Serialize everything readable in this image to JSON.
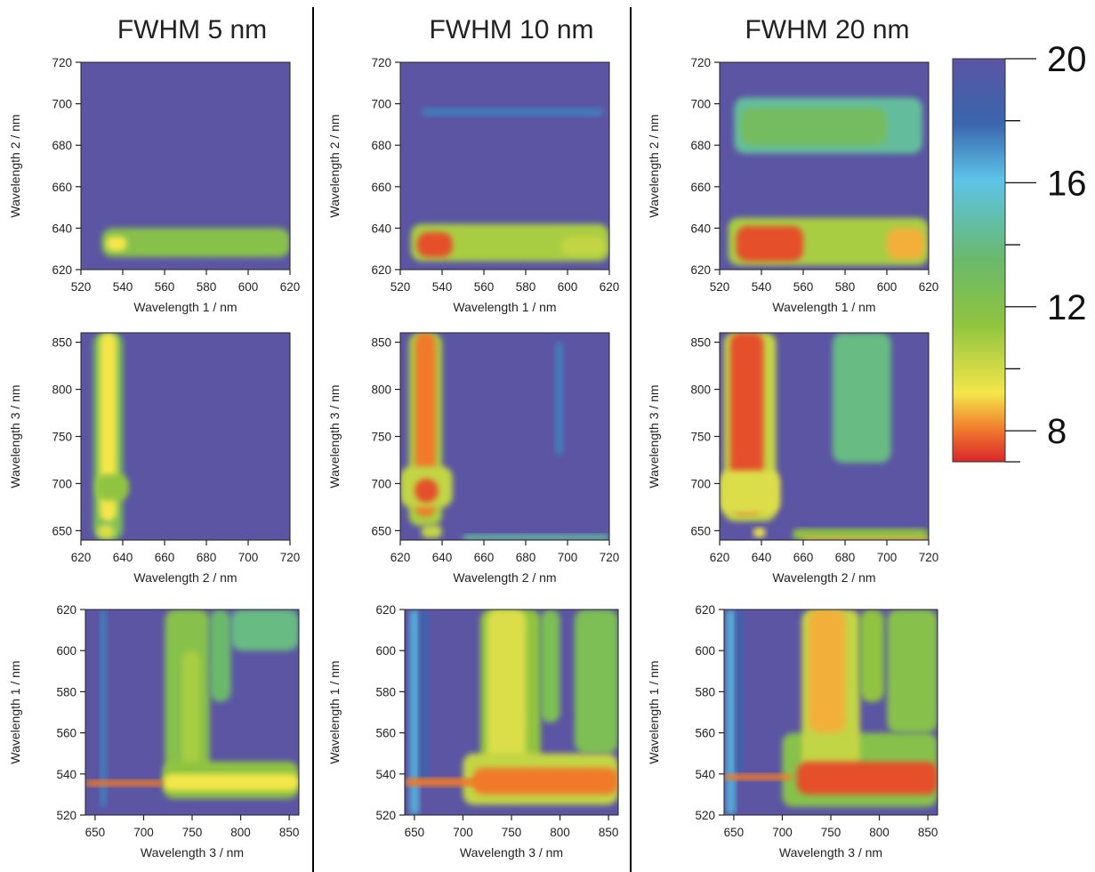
{
  "colors": {
    "background": "#5b55a3",
    "scale": [
      "#d9262b",
      "#f07a2c",
      "#f4e64a",
      "#90c440",
      "#6ab96a",
      "#5cc3e8",
      "#3a65ad",
      "#5b55a3"
    ]
  },
  "colorbar": {
    "range": [
      7,
      20
    ],
    "major_ticks": [
      8,
      12,
      16,
      20
    ],
    "minor_ticks": [
      7,
      10,
      14,
      18
    ],
    "labels": [
      "8",
      "12",
      "16",
      "20"
    ]
  },
  "chart_data": [
    {
      "type": "heatmap",
      "title": "FWHM 5 nm",
      "xlabel": "Wavelength 1 / nm",
      "ylabel": "Wavelength 2 / nm",
      "xlim": [
        520,
        620
      ],
      "ylim": [
        620,
        720
      ],
      "xticks": [
        520,
        540,
        560,
        580,
        600,
        620
      ],
      "yticks": [
        620,
        640,
        660,
        680,
        700,
        720
      ],
      "xtick_labels": [
        "520",
        "540",
        "560",
        "580",
        "600",
        "620"
      ],
      "ytick_labels": [
        "620",
        "640",
        "660",
        "680",
        "700",
        "720"
      ],
      "features": [
        {
          "x": [
            530,
            620
          ],
          "y": [
            626,
            640
          ],
          "level": 11.5
        },
        {
          "x": [
            532,
            542
          ],
          "y": [
            629,
            636
          ],
          "level": 9
        }
      ]
    },
    {
      "type": "heatmap",
      "title": "FWHM 10 nm",
      "xlabel": "Wavelength 1 / nm",
      "ylabel": "Wavelength 2 / nm",
      "xlim": [
        520,
        620
      ],
      "ylim": [
        620,
        720
      ],
      "xticks": [
        520,
        540,
        560,
        580,
        600,
        620
      ],
      "yticks": [
        620,
        640,
        660,
        680,
        700,
        720
      ],
      "xtick_labels": [
        "520",
        "540",
        "560",
        "580",
        "600",
        "620"
      ],
      "ytick_labels": [
        "620",
        "640",
        "660",
        "680",
        "700",
        "720"
      ],
      "features": [
        {
          "x": [
            525,
            620
          ],
          "y": [
            624,
            642
          ],
          "level": 10.5
        },
        {
          "x": [
            528,
            545
          ],
          "y": [
            626,
            638
          ],
          "level": 7.5
        },
        {
          "x": [
            597,
            618
          ],
          "y": [
            627,
            636
          ],
          "level": 10
        },
        {
          "x": [
            530,
            617
          ],
          "y": [
            694,
            698
          ],
          "level": 17
        }
      ]
    },
    {
      "type": "heatmap",
      "title": "FWHM 20 nm",
      "xlabel": "Wavelength 1 / nm",
      "ylabel": "Wavelength 2 / nm",
      "xlim": [
        520,
        620
      ],
      "ylim": [
        620,
        720
      ],
      "xticks": [
        520,
        540,
        560,
        580,
        600,
        620
      ],
      "yticks": [
        620,
        640,
        660,
        680,
        700,
        720
      ],
      "xtick_labels": [
        "520",
        "540",
        "560",
        "580",
        "600",
        "620"
      ],
      "ytick_labels": [
        "620",
        "640",
        "660",
        "680",
        "700",
        "720"
      ],
      "features": [
        {
          "x": [
            524,
            620
          ],
          "y": [
            622,
            645
          ],
          "level": 10.5
        },
        {
          "x": [
            528,
            560
          ],
          "y": [
            624,
            641
          ],
          "level": 7.5
        },
        {
          "x": [
            600,
            618
          ],
          "y": [
            625,
            640
          ],
          "level": 8.5
        },
        {
          "x": [
            527,
            617
          ],
          "y": [
            676,
            703
          ],
          "level": 14
        },
        {
          "x": [
            530,
            600
          ],
          "y": [
            680,
            698
          ],
          "level": 12.5
        }
      ]
    },
    {
      "type": "heatmap",
      "xlabel": "Wavelength 2 / nm",
      "ylabel": "Wavelength 3 / nm",
      "xlim": [
        620,
        720
      ],
      "ylim": [
        640,
        860
      ],
      "xticks": [
        620,
        640,
        660,
        680,
        700,
        720
      ],
      "yticks": [
        650,
        700,
        750,
        800,
        850
      ],
      "xtick_labels": [
        "620",
        "640",
        "660",
        "680",
        "700",
        "720"
      ],
      "ytick_labels": [
        "650",
        "700",
        "750",
        "800",
        "850"
      ],
      "features": [
        {
          "x": [
            626,
            640
          ],
          "y": [
            640,
            860
          ],
          "level": 12
        },
        {
          "x": [
            629,
            637
          ],
          "y": [
            660,
            860
          ],
          "level": 9
        },
        {
          "x": [
            627,
            643
          ],
          "y": [
            682,
            710
          ],
          "level": 11
        },
        {
          "x": [
            628,
            636
          ],
          "y": [
            642,
            656
          ],
          "level": 9.5
        }
      ]
    },
    {
      "type": "heatmap",
      "xlabel": "Wavelength 2 / nm",
      "ylabel": "Wavelength 3 / nm",
      "xlim": [
        620,
        720
      ],
      "ylim": [
        640,
        860
      ],
      "xticks": [
        620,
        640,
        660,
        680,
        700,
        720
      ],
      "yticks": [
        650,
        700,
        750,
        800,
        850
      ],
      "xtick_labels": [
        "620",
        "640",
        "660",
        "680",
        "700",
        "720"
      ],
      "ytick_labels": [
        "650",
        "700",
        "750",
        "800",
        "850"
      ],
      "features": [
        {
          "x": [
            624,
            640
          ],
          "y": [
            655,
            860
          ],
          "level": 10.5
        },
        {
          "x": [
            627,
            637
          ],
          "y": [
            665,
            860
          ],
          "level": 8
        },
        {
          "x": [
            620,
            645
          ],
          "y": [
            675,
            718
          ],
          "level": 10
        },
        {
          "x": [
            627,
            638
          ],
          "y": [
            680,
            705
          ],
          "level": 7.5
        },
        {
          "x": [
            630,
            640
          ],
          "y": [
            642,
            656
          ],
          "level": 10
        },
        {
          "x": [
            650,
            720
          ],
          "y": [
            640,
            646
          ],
          "level": 14
        },
        {
          "x": [
            694,
            698
          ],
          "y": [
            730,
            850
          ],
          "level": 17
        }
      ]
    },
    {
      "type": "heatmap",
      "xlabel": "Wavelength 2 / nm",
      "ylabel": "Wavelength 3 / nm",
      "xlim": [
        620,
        720
      ],
      "ylim": [
        640,
        860
      ],
      "xticks": [
        620,
        640,
        660,
        680,
        700,
        720
      ],
      "yticks": [
        650,
        700,
        750,
        800,
        850
      ],
      "xtick_labels": [
        "620",
        "640",
        "660",
        "680",
        "700",
        "720"
      ],
      "ytick_labels": [
        "650",
        "700",
        "750",
        "800",
        "850"
      ],
      "features": [
        {
          "x": [
            622,
            647
          ],
          "y": [
            660,
            860
          ],
          "level": 10
        },
        {
          "x": [
            625,
            641
          ],
          "y": [
            668,
            860
          ],
          "level": 7.5
        },
        {
          "x": [
            620,
            649
          ],
          "y": [
            668,
            714
          ],
          "level": 9.5
        },
        {
          "x": [
            674,
            702
          ],
          "y": [
            722,
            860
          ],
          "level": 13.5
        },
        {
          "x": [
            636,
            642
          ],
          "y": [
            643,
            653
          ],
          "level": 9
        },
        {
          "x": [
            655,
            720
          ],
          "y": [
            640,
            652
          ],
          "level": 11
        },
        {
          "x": [
            660,
            720
          ],
          "y": [
            640,
            644
          ],
          "level": 8.5
        }
      ]
    },
    {
      "type": "heatmap",
      "xlabel": "Wavelength 3 / nm",
      "ylabel": "Wavelength 1 / nm",
      "xlim": [
        640,
        860
      ],
      "ylim": [
        520,
        620
      ],
      "xticks": [
        650,
        700,
        750,
        800,
        850
      ],
      "yticks": [
        520,
        540,
        560,
        580,
        600,
        620
      ],
      "xtick_labels": [
        "650",
        "700",
        "750",
        "800",
        "850"
      ],
      "ytick_labels": [
        "520",
        "540",
        "560",
        "580",
        "600",
        "620"
      ],
      "features": [
        {
          "x": [
            655,
            662
          ],
          "y": [
            524,
            620
          ],
          "level": 17
        },
        {
          "x": [
            722,
            768
          ],
          "y": [
            534,
            620
          ],
          "level": 11.5
        },
        {
          "x": [
            740,
            758
          ],
          "y": [
            536,
            600
          ],
          "level": 10.5
        },
        {
          "x": [
            768,
            790
          ],
          "y": [
            575,
            620
          ],
          "level": 13
        },
        {
          "x": [
            790,
            860
          ],
          "y": [
            600,
            620
          ],
          "level": 13.5
        },
        {
          "x": [
            720,
            860
          ],
          "y": [
            528,
            546
          ],
          "level": 11
        },
        {
          "x": [
            720,
            860
          ],
          "y": [
            532,
            540
          ],
          "level": 9
        },
        {
          "x": [
            640,
            720
          ],
          "y": [
            534,
            537
          ],
          "level": 8
        }
      ]
    },
    {
      "type": "heatmap",
      "xlabel": "Wavelength 3 / nm",
      "ylabel": "Wavelength 1 / nm",
      "xlim": [
        640,
        860
      ],
      "ylim": [
        520,
        620
      ],
      "xticks": [
        650,
        700,
        750,
        800,
        850
      ],
      "yticks": [
        520,
        540,
        560,
        580,
        600,
        620
      ],
      "xtick_labels": [
        "650",
        "700",
        "750",
        "800",
        "850"
      ],
      "ytick_labels": [
        "520",
        "540",
        "560",
        "580",
        "600",
        "620"
      ],
      "features": [
        {
          "x": [
            645,
            655
          ],
          "y": [
            520,
            620
          ],
          "level": 16
        },
        {
          "x": [
            655,
            665
          ],
          "y": [
            535,
            620
          ],
          "level": 18
        },
        {
          "x": [
            718,
            780
          ],
          "y": [
            530,
            620
          ],
          "level": 11
        },
        {
          "x": [
            725,
            765
          ],
          "y": [
            530,
            620
          ],
          "level": 9.5
        },
        {
          "x": [
            780,
            800
          ],
          "y": [
            565,
            620
          ],
          "level": 12
        },
        {
          "x": [
            815,
            860
          ],
          "y": [
            550,
            620
          ],
          "level": 12
        },
        {
          "x": [
            700,
            860
          ],
          "y": [
            525,
            550
          ],
          "level": 10
        },
        {
          "x": [
            710,
            860
          ],
          "y": [
            530,
            543
          ],
          "level": 8
        },
        {
          "x": [
            640,
            720
          ],
          "y": [
            534,
            538
          ],
          "level": 8
        }
      ]
    },
    {
      "type": "heatmap",
      "xlabel": "Wavelength 3 / nm",
      "ylabel": "Wavelength 1 / nm",
      "xlim": [
        640,
        860
      ],
      "ylim": [
        520,
        620
      ],
      "xticks": [
        650,
        700,
        750,
        800,
        850
      ],
      "yticks": [
        520,
        540,
        560,
        580,
        600,
        620
      ],
      "xtick_labels": [
        "650",
        "700",
        "750",
        "800",
        "850"
      ],
      "ytick_labels": [
        "520",
        "540",
        "560",
        "580",
        "600",
        "620"
      ],
      "features": [
        {
          "x": [
            642,
            652
          ],
          "y": [
            520,
            620
          ],
          "level": 16
        },
        {
          "x": [
            652,
            660
          ],
          "y": [
            540,
            620
          ],
          "level": 18
        },
        {
          "x": [
            700,
            860
          ],
          "y": [
            524,
            560
          ],
          "level": 11.5
        },
        {
          "x": [
            720,
            780
          ],
          "y": [
            540,
            620
          ],
          "level": 10
        },
        {
          "x": [
            727,
            765
          ],
          "y": [
            560,
            620
          ],
          "level": 8.5
        },
        {
          "x": [
            715,
            860
          ],
          "y": [
            530,
            546
          ],
          "level": 7.5
        },
        {
          "x": [
            780,
            805
          ],
          "y": [
            575,
            620
          ],
          "level": 11
        },
        {
          "x": [
            808,
            860
          ],
          "y": [
            560,
            620
          ],
          "level": 11.5
        },
        {
          "x": [
            640,
            710
          ],
          "y": [
            537,
            540
          ],
          "level": 8
        }
      ]
    }
  ]
}
